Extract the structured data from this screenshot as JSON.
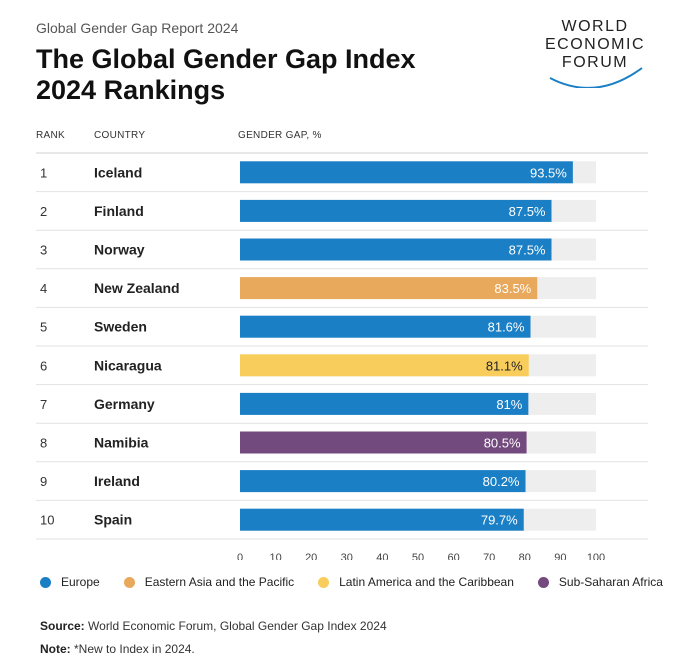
{
  "header": {
    "report": "Global Gender Gap Report 2024",
    "title": "The Global Gender Gap Index 2024 Rankings",
    "logo_lines": [
      "WORLD",
      "ECONOMIC",
      "FORUM"
    ]
  },
  "columns": {
    "rank": "RANK",
    "country": "COUNTRY",
    "gap": "GENDER GAP, %"
  },
  "colors": {
    "Europe": "#1a7fc4",
    "Eastern Asia and the Pacific": "#e8a95c",
    "Latin America and the Caribbean": "#f8cd5c",
    "Sub-Saharan Africa": "#734a7e",
    "track": "#eeeeee"
  },
  "chart_data": {
    "type": "bar",
    "orientation": "horizontal",
    "xlim": [
      0,
      100
    ],
    "xticks": [
      0,
      10,
      20,
      30,
      40,
      50,
      60,
      70,
      80,
      90,
      100
    ],
    "rows": [
      {
        "rank": "1",
        "country": "Iceland",
        "value": 93.5,
        "label": "93.5%",
        "region": "Europe"
      },
      {
        "rank": "2",
        "country": "Finland",
        "value": 87.5,
        "label": "87.5%",
        "region": "Europe"
      },
      {
        "rank": "3",
        "country": "Norway",
        "value": 87.5,
        "label": "87.5%",
        "region": "Europe"
      },
      {
        "rank": "4",
        "country": "New Zealand",
        "value": 83.5,
        "label": "83.5%",
        "region": "Eastern Asia and the Pacific"
      },
      {
        "rank": "5",
        "country": "Sweden",
        "value": 81.6,
        "label": "81.6%",
        "region": "Europe"
      },
      {
        "rank": "6",
        "country": "Nicaragua",
        "value": 81.1,
        "label": "81.1%",
        "region": "Latin America and the Caribbean"
      },
      {
        "rank": "7",
        "country": "Germany",
        "value": 81.0,
        "label": "81%",
        "region": "Europe"
      },
      {
        "rank": "8",
        "country": "Namibia",
        "value": 80.5,
        "label": "80.5%",
        "region": "Sub-Saharan Africa"
      },
      {
        "rank": "9",
        "country": "Ireland",
        "value": 80.2,
        "label": "80.2%",
        "region": "Europe"
      },
      {
        "rank": "10",
        "country": "Spain",
        "value": 79.7,
        "label": "79.7%",
        "region": "Europe"
      }
    ],
    "legend": [
      "Europe",
      "Eastern Asia and the Pacific",
      "Latin America and the Caribbean",
      "Sub-Saharan Africa"
    ]
  },
  "footer": {
    "source_label": "Source:",
    "source_text": "World Economic Forum, Global Gender Gap Index 2024",
    "note_label": "Note:",
    "note_text": "*New to Index in 2024."
  }
}
